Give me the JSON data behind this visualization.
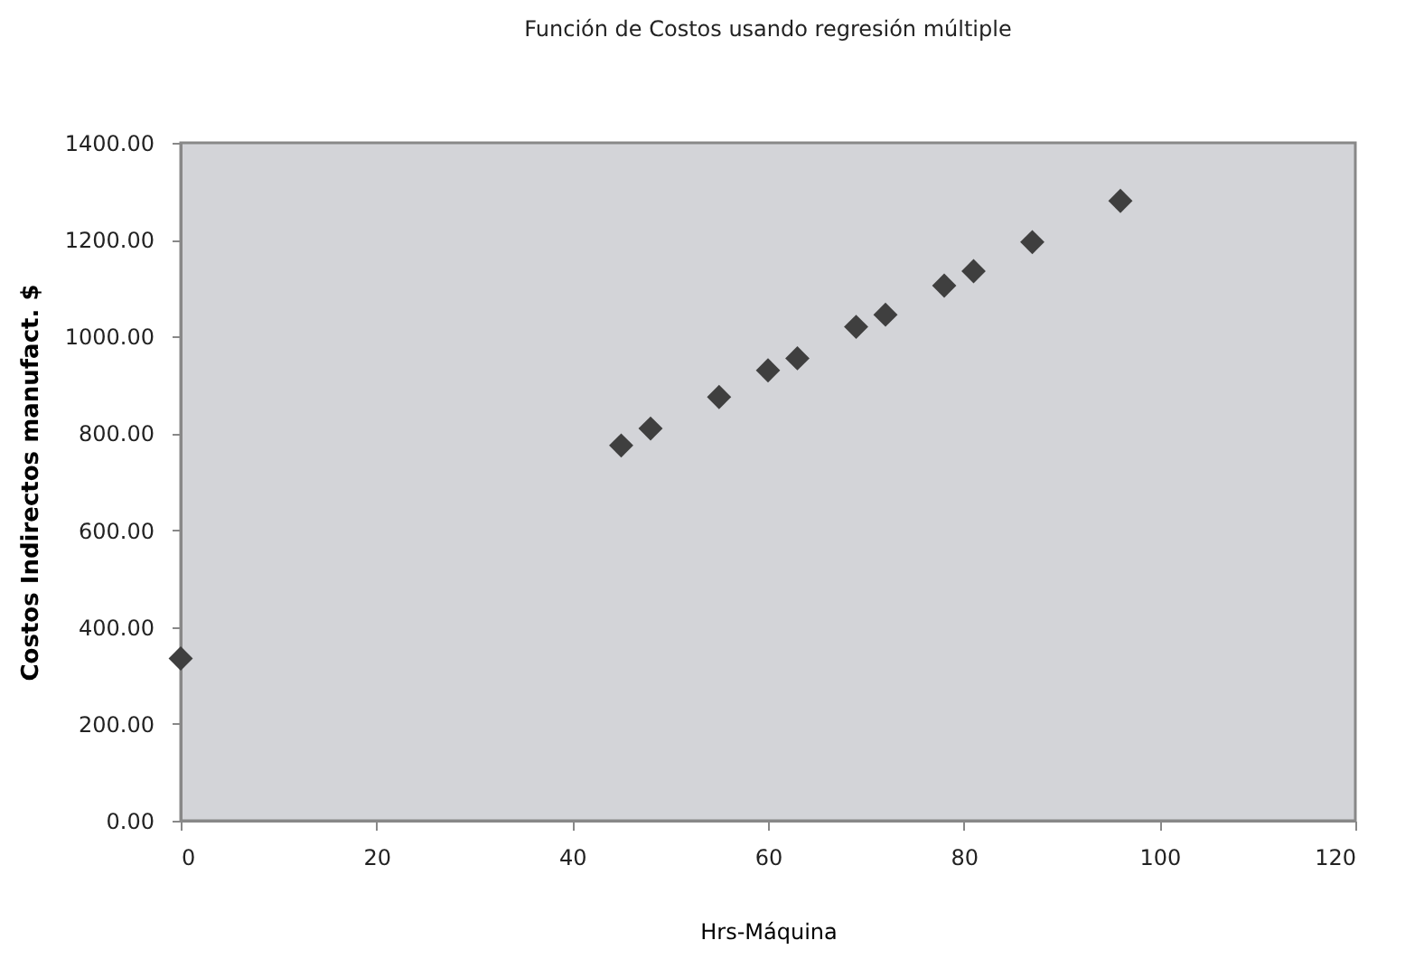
{
  "chart_data": {
    "type": "scatter",
    "title": "Función de Costos usando regresión múltiple",
    "xlabel": "Hrs-Máquina",
    "ylabel": "Costos Indirectos manufact. $",
    "x": [
      0,
      45,
      48,
      55,
      60,
      63,
      69,
      72,
      78,
      81,
      87,
      96
    ],
    "series": [
      {
        "color": "#3f3f3f",
        "values": [
          335,
          775,
          810,
          875,
          930,
          955,
          1020,
          1045,
          1105,
          1135,
          1195,
          1280
        ]
      }
    ],
    "marker": "diamond",
    "grid": false,
    "legend": false,
    "xlim": [
      0,
      120
    ],
    "xticks": [
      0,
      20,
      40,
      60,
      80,
      100,
      120
    ],
    "ylim": [
      0,
      1400
    ],
    "yticks": [
      {
        "value": 0,
        "label": "0.00"
      },
      {
        "value": 200,
        "label": "200.00"
      },
      {
        "value": 400,
        "label": "400.00"
      },
      {
        "value": 600,
        "label": "600.00"
      },
      {
        "value": 800,
        "label": "800.00"
      },
      {
        "value": 1000,
        "label": "1000.00"
      },
      {
        "value": 1200,
        "label": "1200.00"
      },
      {
        "value": 1400,
        "label": "1400.00"
      }
    ]
  }
}
